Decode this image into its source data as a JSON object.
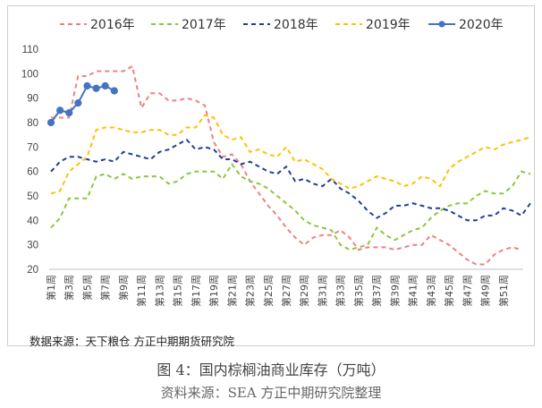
{
  "chart_data": {
    "type": "line",
    "title": "",
    "xlabel": "",
    "ylabel": "",
    "ylim": [
      20,
      110
    ],
    "yticks": [
      20,
      30,
      40,
      50,
      60,
      70,
      80,
      90,
      100,
      110
    ],
    "grid": false,
    "legend_position": "top",
    "x_tick_labels": [
      "第1周",
      "第3周",
      "第5周",
      "第7周",
      "第9周",
      "第11周",
      "第13周",
      "第15周",
      "第17周",
      "第19周",
      "第21周",
      "第23周",
      "第25周",
      "第27周",
      "第29周",
      "第31周",
      "第33周",
      "第35周",
      "第37周",
      "第39周",
      "第41周",
      "第43周",
      "第45周",
      "第47周",
      "第49周",
      "第51周"
    ],
    "series": [
      {
        "name": "2016年",
        "color": "#f08080",
        "style": "dashed",
        "values": [
          82,
          82,
          82,
          99,
          99,
          101,
          101,
          101,
          101,
          103,
          86,
          92,
          92,
          89,
          89,
          90,
          89,
          87,
          72,
          66,
          67,
          63,
          56,
          51,
          46,
          42,
          37,
          33,
          30,
          33,
          34,
          34,
          36,
          33,
          28,
          29,
          29,
          29,
          28,
          29,
          30,
          30,
          34,
          32,
          30,
          27,
          24,
          22,
          22,
          26,
          28,
          29,
          28
        ]
      },
      {
        "name": "2017年",
        "color": "#8dc63f",
        "style": "dashed",
        "values": [
          37,
          41,
          49,
          49,
          49,
          58,
          59,
          57,
          59,
          57,
          58,
          58,
          58,
          55,
          56,
          59,
          60,
          60,
          60,
          57,
          63,
          58,
          56,
          55,
          53,
          50,
          47,
          44,
          40,
          38,
          37,
          36,
          30,
          28,
          29,
          30,
          37,
          34,
          32,
          34,
          36,
          37,
          41,
          44,
          46,
          47,
          47,
          50,
          52,
          51,
          51,
          54,
          60,
          59
        ]
      },
      {
        "name": "2018年",
        "color": "#1f3f99",
        "style": "dashed",
        "values": [
          60,
          64,
          66,
          66,
          65,
          64,
          65,
          64,
          68,
          67,
          66,
          65,
          68,
          69,
          71,
          73,
          69,
          70,
          69,
          65,
          65,
          63,
          64,
          62,
          60,
          59,
          62,
          56,
          57,
          55,
          54,
          57,
          53,
          51,
          48,
          44,
          41,
          43,
          46,
          46,
          47,
          46,
          45,
          45,
          44,
          42,
          40,
          40,
          42,
          42,
          45,
          44,
          42,
          47
        ]
      },
      {
        "name": "2019年",
        "color": "#ffc000",
        "style": "dashed",
        "values": [
          51,
          52,
          60,
          63,
          66,
          77,
          78,
          78,
          77,
          76,
          76,
          77,
          77,
          75,
          75,
          78,
          78,
          83,
          82,
          75,
          73,
          74,
          68,
          69,
          67,
          66,
          70,
          64,
          65,
          63,
          61,
          57,
          55,
          53,
          54,
          56,
          58,
          57,
          56,
          54,
          55,
          58,
          57,
          54,
          61,
          64,
          66,
          68,
          70,
          69,
          71,
          72,
          73,
          74
        ]
      },
      {
        "name": "2020年",
        "color": "#4472c4",
        "style": "solid-marker",
        "values": [
          80,
          85,
          84,
          88,
          95,
          94,
          95,
          93
        ]
      }
    ]
  },
  "source_note": "数据来源：天下粮仓 方正中期期货研究院",
  "figure_caption": "图 4：国内棕榈油商业库存（万吨）",
  "figure_source": "资料来源：SEA 方正中期研究院整理"
}
